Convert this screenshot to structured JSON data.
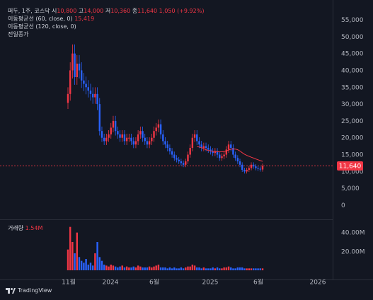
{
  "legend": {
    "symbol": "퍼두, 1주, 코스닥",
    "o_label": "시",
    "o_value": "10,800",
    "h_label": "고",
    "h_value": "14,000",
    "l_label": "저",
    "l_value": "10,360",
    "c_label": "종",
    "c_value": "11,640",
    "change": "1,050 (+9.92%)",
    "ma60": "이동평균선 (60, close, 0)",
    "ma60_value": "15,419",
    "ma120": "이동평균선 (120, close, 0)",
    "prev_close": "전일종가"
  },
  "volume": {
    "label": "거래량",
    "value": "1.54M"
  },
  "price_badge": "11,640",
  "brand": "TradingView",
  "colors": {
    "up": "#f23645",
    "down": "#2962ff",
    "ma": "#f23645",
    "background": "#131722"
  },
  "chart_data": {
    "type": "candlestick",
    "price_axis": {
      "ticks": [
        "55,000",
        "50,000",
        "45,000",
        "40,000",
        "35,000",
        "30,000",
        "25,000",
        "20,000",
        "15,000",
        "10,000",
        "5,000",
        "0"
      ],
      "ylim": [
        0,
        57000
      ]
    },
    "volume_axis": {
      "ticks": [
        "40.00M",
        "20.00M"
      ],
      "ylim": [
        0,
        48
      ]
    },
    "x_ticks": [
      "11월",
      "2024",
      "6월",
      "2025",
      "6월",
      "2026"
    ],
    "last_close": 11640,
    "series": [
      {
        "name": "퍼두",
        "close": [
          33000,
          40000,
          45000,
          38000,
          42000,
          40000,
          37000,
          36000,
          35000,
          34000,
          33000,
          32000,
          33000,
          30000,
          22000,
          20000,
          19000,
          20000,
          21000,
          23000,
          25000,
          22000,
          21000,
          20000,
          21000,
          19000,
          20000,
          20000,
          19000,
          18000,
          19000,
          21000,
          22000,
          20000,
          19000,
          18000,
          19000,
          20000,
          22000,
          23000,
          24000,
          21000,
          19000,
          18000,
          17000,
          16000,
          15000,
          14000,
          13500,
          13000,
          12500,
          12000,
          13000,
          15000,
          17000,
          20000,
          21000,
          19000,
          18000,
          17000,
          17500,
          17000,
          16500,
          16000,
          15500,
          16000,
          15000,
          14000,
          14500,
          15000,
          16500,
          18000,
          17000,
          15000,
          14000,
          13000,
          12000,
          10500,
          10000,
          10500,
          11000,
          12000,
          11500,
          11000,
          10800,
          10590,
          11640
        ]
      }
    ]
  }
}
